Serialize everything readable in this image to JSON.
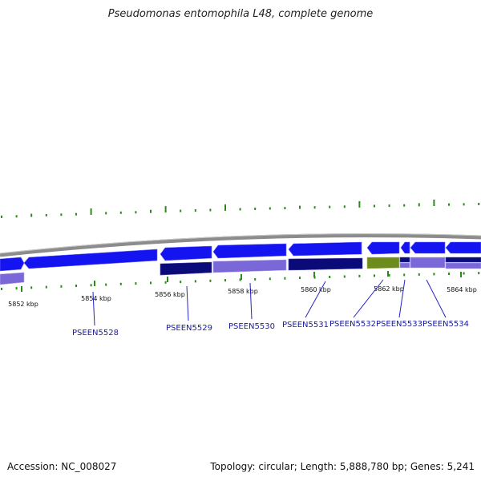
{
  "title": "Pseudomonas entomophila L48, complete genome",
  "accession": "Accession: NC_008027",
  "summary": "Topology: circular; Length: 5,888,780 bp; Genes: 5,241",
  "colors": {
    "backbone": "#8c8c8c",
    "gene_blue": "#1414f0",
    "gene_navy": "#0a0a78",
    "gene_lavender": "#7b68d8",
    "gene_green": "#6e8c1e",
    "tick_green": "#2a8a1a",
    "label_blue": "#1a1aa0",
    "leader": "#2424c8"
  },
  "scale_labels": [
    {
      "text": "5852 kbp",
      "kbp": 5852
    },
    {
      "text": "5854 kbp",
      "kbp": 5854
    },
    {
      "text": "5856 kbp",
      "kbp": 5856
    },
    {
      "text": "5858 kbp",
      "kbp": 5858
    },
    {
      "text": "5860 kbp",
      "kbp": 5860
    },
    {
      "text": "5862 kbp",
      "kbp": 5862
    },
    {
      "text": "5864 kbp",
      "kbp": 5864
    }
  ],
  "gene_labels": [
    {
      "text": "PSEEN5528"
    },
    {
      "text": "PSEEN5529"
    },
    {
      "text": "PSEEN5530"
    },
    {
      "text": "PSEEN5531"
    },
    {
      "text": "PSEEN5532"
    },
    {
      "text": "PSEEN5533"
    },
    {
      "text": "PSEEN5534"
    }
  ]
}
